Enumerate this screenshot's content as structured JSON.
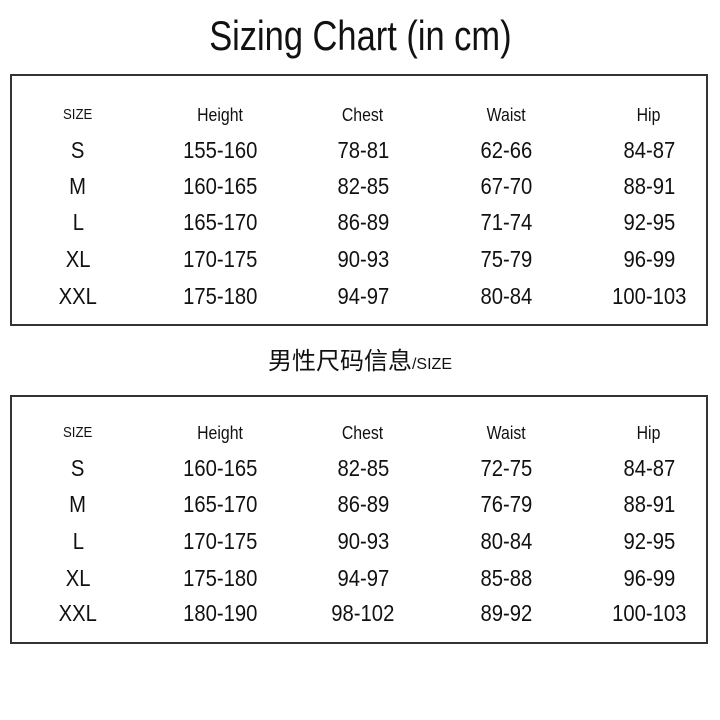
{
  "title": "Sizing Chart (in cm)",
  "subtitle": {
    "main": "男性尺码信息",
    "suffix": "/SIZE"
  },
  "tables": [
    {
      "headers": [
        "SIZE",
        "Height",
        "Chest",
        "Waist",
        "Hip"
      ],
      "rows": [
        [
          "S",
          "155-160",
          "78-81",
          "62-66",
          "84-87"
        ],
        [
          "M",
          "160-165",
          "82-85",
          "67-70",
          "88-91"
        ],
        [
          "L",
          "165-170",
          "86-89",
          "71-74",
          "92-95"
        ],
        [
          "XL",
          "170-175",
          "90-93",
          "75-79",
          "96-99"
        ],
        [
          "XXL",
          "175-180",
          "94-97",
          "80-84",
          "100-103"
        ]
      ]
    },
    {
      "headers": [
        "SIZE",
        "Height",
        "Chest",
        "Waist",
        "Hip"
      ],
      "rows": [
        [
          "S",
          "160-165",
          "82-85",
          "72-75",
          "84-87"
        ],
        [
          "M",
          "165-170",
          "86-89",
          "76-79",
          "88-91"
        ],
        [
          "L",
          "170-175",
          "90-93",
          "80-84",
          "92-95"
        ],
        [
          "XL",
          "175-180",
          "94-97",
          "85-88",
          "96-99"
        ],
        [
          "XXL",
          "180-190",
          "98-102",
          "89-92",
          "100-103"
        ]
      ]
    }
  ]
}
